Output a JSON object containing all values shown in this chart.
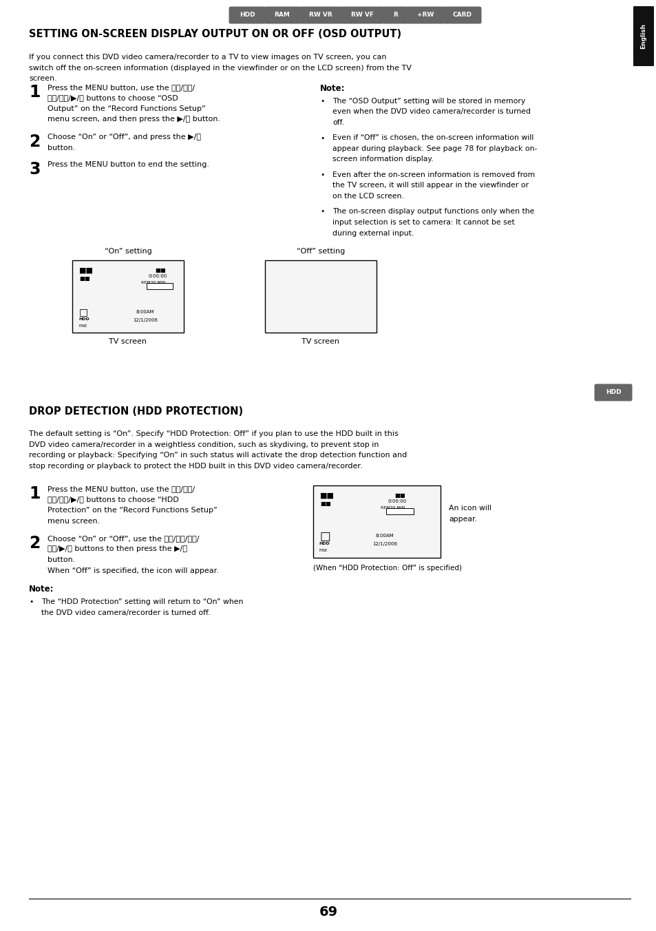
{
  "page_bg": "#ffffff",
  "page_width": 9.54,
  "page_height": 13.52,
  "dpi": 100,
  "top_tabs": [
    "HDD",
    "RAM",
    "RW VR",
    "RW VF",
    "R",
    "+RW",
    "CARD"
  ],
  "tab_color": "#666666",
  "tab_text_color": "#ffffff",
  "section1_title": "SETTING ON-SCREEN DISPLAY OUTPUT ON OR OFF (OSD OUTPUT)",
  "section1_body_line1": "If you connect this DVD video camera/recorder to a TV to view images on TV screen, you can",
  "section1_body_line2": "switch off the on-screen information (displayed in the viewfinder or on the LCD screen) from the TV",
  "section1_body_line3": "screen.",
  "step1_num": "1",
  "step1_lines": [
    "Press the MENU button, use the ⏮⏮/⏭⏭/",
    "⏪⏪/⏩⏩/▶/⏯ buttons to choose “OSD",
    "Output” on the “Record Functions Setup”",
    "menu screen, and then press the ▶/⏯ button."
  ],
  "step2_num": "2",
  "step2_lines": [
    "Choose “On” or “Off”, and press the ▶/⏯",
    "button."
  ],
  "step3_num": "3",
  "step3_lines": [
    "Press the MENU button to end the setting."
  ],
  "note_title": "Note:",
  "note_bullets": [
    [
      "The “OSD Output” setting will be stored in memory",
      "even when the DVD video camera/recorder is turned",
      "off."
    ],
    [
      "Even if “Off” is chosen, the on-screen information will",
      "appear during playback. See page 78 for playback on-",
      "screen information display."
    ],
    [
      "Even after the on-screen information is removed from",
      "the TV screen, it will still appear in the viewfinder or",
      "on the LCD screen."
    ],
    [
      "The on-screen display output functions only when the",
      "input selection is set to camera: It cannot be set",
      "during external input."
    ]
  ],
  "on_setting_label": "“On” setting",
  "off_setting_label": "“Off” setting",
  "tv_screen_label": "TV screen",
  "hdd_tab_color": "#666666",
  "section2_title": "DROP DETECTION (HDD PROTECTION)",
  "section2_body_lines": [
    "The default setting is “On”. Specify “HDD Protection: Off” if you plan to use the HDD built in this",
    "DVD video camera/recorder in a weightless condition, such as skydiving, to prevent stop in",
    "recording or playback: Specifying “On” in such status will activate the drop detection function and",
    "stop recording or playback to protect the HDD built in this DVD video camera/recorder."
  ],
  "s2_step1_lines": [
    "Press the MENU button, use the ⏮⏮/⏭⏭/",
    "⏪⏪/⏩⏩/▶/⏯ buttons to choose “HDD",
    "Protection” on the “Record Functions Setup”",
    "menu screen."
  ],
  "s2_step2_lines": [
    "Choose “On” or “Off”, use the ⏮⏮/⏭⏭/⏪⏪/",
    "⏩⏩/▶/⏯ buttons to then press the ▶/⏯",
    "button.",
    "When “Off” is specified, the icon will appear."
  ],
  "s2_note_title": "Note:",
  "s2_note_lines": [
    "The “HDD Protection” setting will return to “On” when",
    "the DVD video camera/recorder is turned off."
  ],
  "s2_screen_caption": "(When “HDD Protection: Off” is specified)",
  "s2_icon_note_line1": "An icon will",
  "s2_icon_note_line2": "appear.",
  "english_tab": "English",
  "page_number": "69",
  "text_color": "#000000"
}
